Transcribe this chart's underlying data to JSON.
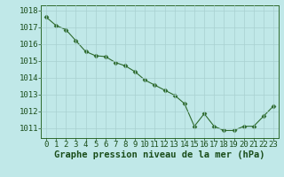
{
  "x": [
    0,
    1,
    2,
    3,
    4,
    5,
    6,
    7,
    8,
    9,
    10,
    11,
    12,
    13,
    14,
    15,
    16,
    17,
    18,
    19,
    20,
    21,
    22,
    23
  ],
  "y": [
    1017.6,
    1017.1,
    1016.85,
    1016.2,
    1015.55,
    1015.3,
    1015.25,
    1014.9,
    1014.7,
    1014.35,
    1013.85,
    1013.55,
    1013.25,
    1012.95,
    1012.45,
    1011.1,
    1011.85,
    1011.1,
    1010.85,
    1010.85,
    1011.1,
    1011.1,
    1011.7,
    1012.3
  ],
  "line_color": "#2d6a2d",
  "marker": "D",
  "marker_color": "#2d6a2d",
  "bg_color": "#c0e8e8",
  "grid_color": "#a8d0d0",
  "xlabel": "Graphe pression niveau de la mer (hPa)",
  "xlabel_color": "#1a4d1a",
  "xlabel_fontsize": 7.5,
  "tick_label_color": "#1a4d1a",
  "tick_label_fontsize": 6.5,
  "ylim": [
    1010.4,
    1018.3
  ],
  "yticks": [
    1011,
    1012,
    1013,
    1014,
    1015,
    1016,
    1017,
    1018
  ],
  "xticks": [
    0,
    1,
    2,
    3,
    4,
    5,
    6,
    7,
    8,
    9,
    10,
    11,
    12,
    13,
    14,
    15,
    16,
    17,
    18,
    19,
    20,
    21,
    22,
    23
  ],
  "line_width": 0.8,
  "marker_size": 2.5
}
